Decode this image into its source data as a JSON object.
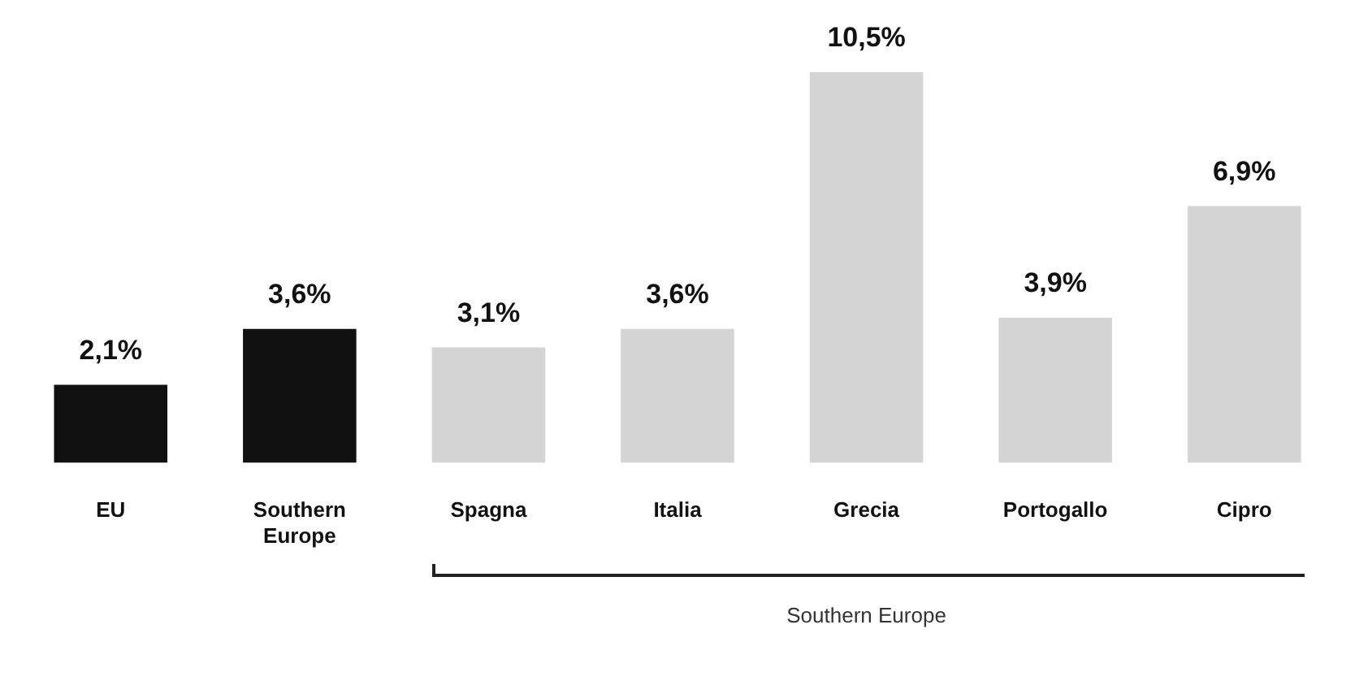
{
  "chart_data": {
    "type": "bar",
    "categories": [
      "EU",
      "Southern Europe",
      "Spagna",
      "Italia",
      "Grecia",
      "Portogallo",
      "Cipro"
    ],
    "values": [
      2.1,
      3.6,
      3.1,
      3.6,
      10.5,
      3.9,
      6.9
    ],
    "colors": [
      "#111111",
      "#111111",
      "#d4d4d4",
      "#d4d4d4",
      "#d4d4d4",
      "#d4d4d4",
      "#d4d4d4"
    ],
    "value_labels": [
      "2,1%",
      "3,6%",
      "3,1%",
      "3,6%",
      "10,5%",
      "3,9%",
      "6,9%"
    ],
    "annotations": [
      "Southern Europe"
    ],
    "grid": false,
    "legend": false,
    "tick_labels": "x"
  }
}
